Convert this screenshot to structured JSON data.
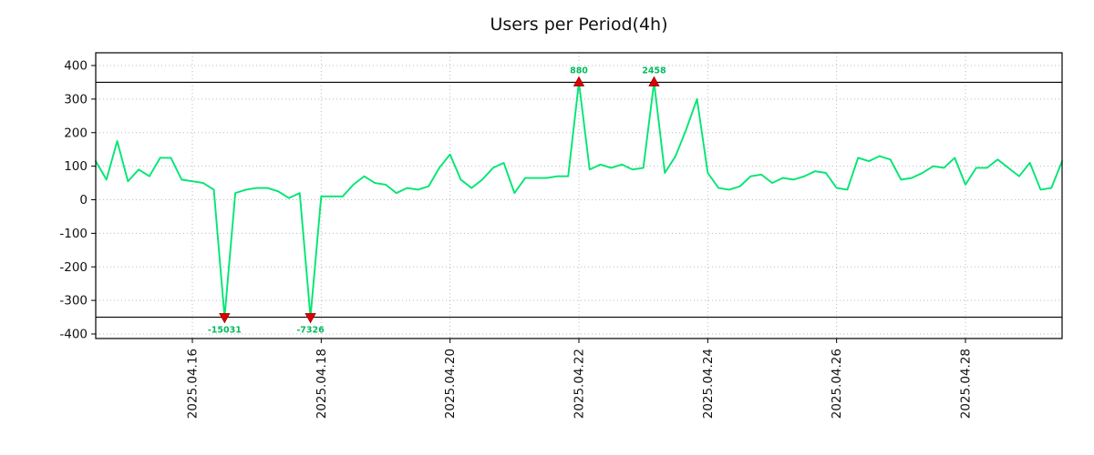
{
  "title": "Users per Period(4h)",
  "chart_data": {
    "type": "line",
    "title": "Users per Period(4h)",
    "interval": "4h",
    "grid": true,
    "ylim": [
      -400,
      400
    ],
    "y_ticks": [
      400,
      300,
      200,
      100,
      0,
      -100,
      -200,
      -300,
      -400
    ],
    "clip_threshold": 350,
    "x_ticks": [
      {
        "index": 9,
        "label": "2025.04.16"
      },
      {
        "index": 21,
        "label": "2025.04.18"
      },
      {
        "index": 33,
        "label": "2025.04.20"
      },
      {
        "index": 45,
        "label": "2025.04.22"
      },
      {
        "index": 57,
        "label": "2025.04.24"
      },
      {
        "index": 69,
        "label": "2025.04.26"
      },
      {
        "index": 81,
        "label": "2025.04.28"
      }
    ],
    "values": [
      115,
      60,
      175,
      55,
      90,
      70,
      125,
      125,
      60,
      55,
      50,
      30,
      -15031,
      20,
      30,
      35,
      35,
      25,
      5,
      20,
      -7326,
      10,
      10,
      10,
      45,
      70,
      50,
      45,
      20,
      35,
      30,
      40,
      95,
      135,
      60,
      35,
      60,
      95,
      110,
      20,
      65,
      65,
      65,
      70,
      70,
      880,
      90,
      105,
      95,
      105,
      90,
      95,
      2458,
      80,
      130,
      210,
      300,
      80,
      35,
      30,
      40,
      70,
      75,
      50,
      65,
      60,
      70,
      85,
      80,
      35,
      30,
      125,
      115,
      130,
      120,
      60,
      65,
      80,
      100,
      95,
      125,
      45,
      95,
      95,
      120,
      95,
      70,
      110,
      30,
      35,
      115
    ],
    "outliers": [
      {
        "index": 12,
        "value": -15031,
        "label": "-15031",
        "direction": "down"
      },
      {
        "index": 20,
        "value": -7326,
        "label": "-7326",
        "direction": "down"
      },
      {
        "index": 45,
        "value": 880,
        "label": "880",
        "direction": "up"
      },
      {
        "index": 52,
        "value": 2458,
        "label": "2458",
        "direction": "up"
      }
    ],
    "colors": {
      "line": "#00e673",
      "marker": "#dd0000",
      "marker_edge": "#990000",
      "outlier_label": "#00bb5f",
      "grid": "#bbbbbb",
      "clip_line": "#000000",
      "axis": "#000000",
      "tick_text": "#111111"
    }
  }
}
